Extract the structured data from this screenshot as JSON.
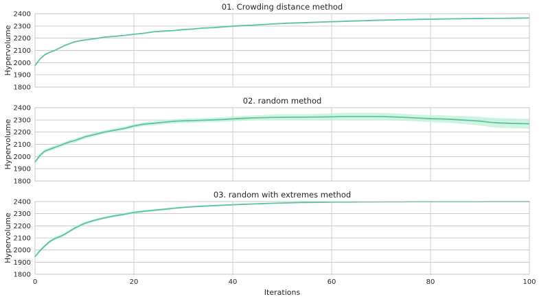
{
  "chart_data": [
    {
      "type": "line",
      "title": "01. Crowding distance method",
      "ylabel": "Hypervolume",
      "xlabel": "",
      "xlim": [
        0,
        100
      ],
      "ylim": [
        1800,
        2400
      ],
      "xticks": [
        0,
        20,
        40,
        60,
        80,
        100
      ],
      "yticks": [
        1800,
        1900,
        2000,
        2100,
        2200,
        2300,
        2400
      ],
      "show_xtick_labels": false,
      "grid": true,
      "color": "#5ac49b",
      "band_color": "#bff0da",
      "x": [
        0,
        1,
        2,
        3,
        4,
        5,
        6,
        7,
        8,
        9,
        10,
        12,
        14,
        16,
        18,
        20,
        22,
        24,
        26,
        28,
        30,
        32,
        34,
        36,
        38,
        40,
        42,
        44,
        46,
        48,
        50,
        52,
        54,
        56,
        58,
        60,
        62,
        64,
        66,
        68,
        70,
        72,
        74,
        76,
        78,
        80,
        82,
        84,
        86,
        88,
        90,
        92,
        94,
        96,
        98,
        100
      ],
      "y": [
        1975,
        2030,
        2065,
        2085,
        2100,
        2120,
        2140,
        2155,
        2170,
        2178,
        2185,
        2195,
        2208,
        2215,
        2222,
        2232,
        2240,
        2252,
        2258,
        2262,
        2270,
        2275,
        2283,
        2286,
        2292,
        2298,
        2303,
        2306,
        2311,
        2316,
        2320,
        2324,
        2326,
        2329,
        2332,
        2335,
        2337,
        2340,
        2342,
        2345,
        2347,
        2349,
        2351,
        2352,
        2354,
        2355,
        2357,
        2358,
        2359,
        2360,
        2361,
        2362,
        2362,
        2363,
        2364,
        2365
      ],
      "band": [
        6,
        6,
        6,
        6,
        6,
        6,
        6,
        6,
        6,
        6,
        6,
        5,
        5,
        5,
        5,
        5,
        5,
        5,
        5,
        5,
        5,
        5,
        5,
        5,
        5,
        5,
        4,
        4,
        4,
        4,
        4,
        4,
        4,
        4,
        4,
        4,
        4,
        4,
        4,
        4,
        4,
        4,
        4,
        4,
        4,
        4,
        4,
        4,
        4,
        4,
        4,
        4,
        4,
        4,
        4,
        4
      ]
    },
    {
      "type": "line",
      "title": "02. random method",
      "ylabel": "Hypervolume",
      "xlabel": "",
      "xlim": [
        0,
        100
      ],
      "ylim": [
        1800,
        2400
      ],
      "xticks": [
        0,
        20,
        40,
        60,
        80,
        100
      ],
      "yticks": [
        1800,
        1900,
        2000,
        2100,
        2200,
        2300,
        2400
      ],
      "show_xtick_labels": false,
      "grid": true,
      "color": "#5ac49b",
      "band_color": "#bff0da",
      "x": [
        0,
        1,
        2,
        3,
        4,
        5,
        6,
        7,
        8,
        9,
        10,
        12,
        14,
        16,
        18,
        20,
        22,
        24,
        26,
        28,
        30,
        32,
        34,
        36,
        38,
        40,
        42,
        44,
        46,
        48,
        50,
        52,
        54,
        56,
        58,
        60,
        62,
        64,
        66,
        68,
        70,
        72,
        74,
        76,
        78,
        80,
        82,
        84,
        86,
        88,
        90,
        92,
        94,
        96,
        98,
        100
      ],
      "y": [
        1955,
        2010,
        2045,
        2060,
        2075,
        2090,
        2105,
        2120,
        2130,
        2145,
        2160,
        2180,
        2200,
        2215,
        2230,
        2250,
        2265,
        2272,
        2280,
        2288,
        2292,
        2294,
        2297,
        2300,
        2303,
        2308,
        2312,
        2316,
        2318,
        2320,
        2321,
        2322,
        2322,
        2323,
        2324,
        2325,
        2327,
        2328,
        2328,
        2328,
        2327,
        2325,
        2322,
        2318,
        2314,
        2310,
        2308,
        2305,
        2300,
        2295,
        2290,
        2280,
        2275,
        2272,
        2270,
        2268
      ],
      "band": [
        12,
        14,
        16,
        16,
        16,
        16,
        16,
        16,
        16,
        16,
        16,
        15,
        15,
        15,
        15,
        15,
        16,
        17,
        17,
        18,
        18,
        18,
        18,
        19,
        19,
        20,
        20,
        20,
        22,
        24,
        25,
        25,
        25,
        26,
        26,
        28,
        30,
        30,
        30,
        30,
        30,
        30,
        28,
        28,
        28,
        30,
        30,
        30,
        32,
        34,
        36,
        38,
        40,
        40,
        40,
        40
      ]
    },
    {
      "type": "line",
      "title": "03. random with extremes method",
      "ylabel": "Hypervolume",
      "xlabel": "Iterations",
      "xlim": [
        0,
        100
      ],
      "ylim": [
        1800,
        2400
      ],
      "xticks": [
        0,
        20,
        40,
        60,
        80,
        100
      ],
      "yticks": [
        1800,
        1900,
        2000,
        2100,
        2200,
        2300,
        2400
      ],
      "show_xtick_labels": true,
      "grid": true,
      "color": "#5ac49b",
      "band_color": "#bff0da",
      "x": [
        0,
        1,
        2,
        3,
        4,
        5,
        6,
        7,
        8,
        9,
        10,
        12,
        14,
        16,
        18,
        20,
        22,
        24,
        26,
        28,
        30,
        32,
        34,
        36,
        38,
        40,
        42,
        44,
        46,
        48,
        50,
        52,
        54,
        56,
        58,
        60,
        62,
        64,
        66,
        68,
        70,
        72,
        74,
        76,
        78,
        80,
        82,
        84,
        86,
        88,
        90,
        92,
        94,
        96,
        98,
        100
      ],
      "y": [
        1945,
        1995,
        2035,
        2070,
        2095,
        2110,
        2130,
        2155,
        2180,
        2200,
        2220,
        2245,
        2265,
        2282,
        2295,
        2310,
        2320,
        2328,
        2336,
        2345,
        2352,
        2358,
        2362,
        2366,
        2370,
        2374,
        2377,
        2380,
        2383,
        2386,
        2388,
        2390,
        2392,
        2393,
        2394,
        2395,
        2396,
        2396,
        2397,
        2397,
        2398,
        2398,
        2398,
        2399,
        2399,
        2399,
        2399,
        2399,
        2399,
        2399,
        2399,
        2400,
        2400,
        2400,
        2400,
        2400
      ],
      "band": [
        10,
        12,
        12,
        12,
        12,
        12,
        12,
        12,
        12,
        12,
        12,
        11,
        11,
        10,
        10,
        9,
        9,
        8,
        8,
        7,
        7,
        6,
        6,
        5,
        5,
        5,
        4,
        4,
        4,
        3,
        3,
        3,
        3,
        3,
        2,
        2,
        2,
        2,
        2,
        2,
        1,
        1,
        1,
        1,
        1,
        1,
        1,
        1,
        1,
        1,
        1,
        1,
        1,
        1,
        1,
        1
      ]
    }
  ]
}
